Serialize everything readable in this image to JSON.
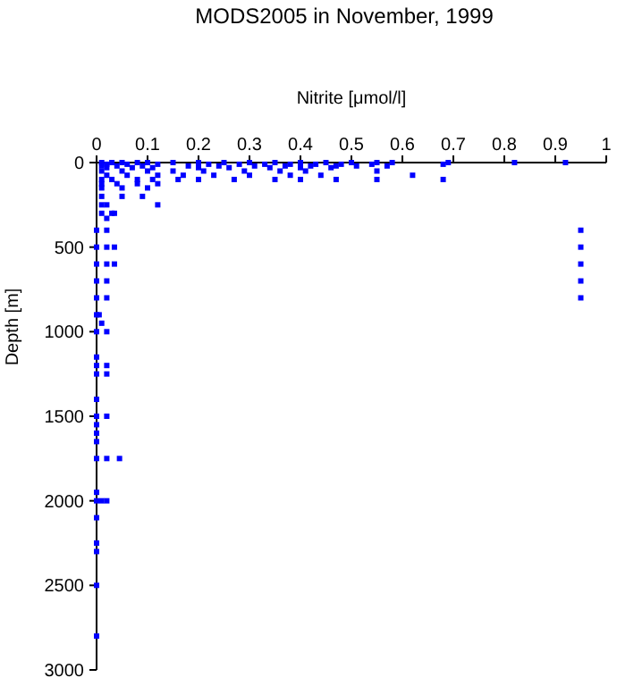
{
  "chart_data": {
    "type": "scatter",
    "title": "MODS2005 in November, 1999",
    "xlabel": "Nitrite [μmol/l]",
    "ylabel": "Depth [m]",
    "marker": "square",
    "grid": false,
    "xlim": [
      0,
      1
    ],
    "xticks": [
      0,
      0.1,
      0.2,
      0.3,
      0.4,
      0.5,
      0.6,
      0.7,
      0.8,
      0.9,
      1
    ],
    "ylim": [
      3000,
      0
    ],
    "yticks": [
      0,
      500,
      1000,
      1500,
      2000,
      2500,
      3000
    ],
    "series": [
      {
        "color": "#0000ff",
        "x": [
          0.01,
          0.03,
          0.05,
          0.08,
          0.1,
          0.15,
          0.2,
          0.25,
          0.3,
          0.35,
          0.4,
          0.45,
          0.5,
          0.55,
          0.58,
          0.69,
          0.82,
          0.92,
          0.02,
          0.06,
          0.12,
          0.22,
          0.28,
          0.33,
          0.38,
          0.43,
          0.48,
          0.54,
          0.68,
          0.01,
          0.04,
          0.09,
          0.18,
          0.24,
          0.31,
          0.37,
          0.42,
          0.47,
          0.51,
          0.57,
          0.02,
          0.07,
          0.11,
          0.2,
          0.26,
          0.34,
          0.4,
          0.46,
          0.01,
          0.05,
          0.1,
          0.15,
          0.21,
          0.29,
          0.36,
          0.41,
          0.55,
          0.02,
          0.06,
          0.12,
          0.17,
          0.23,
          0.3,
          0.38,
          0.44,
          0.62,
          0.01,
          0.03,
          0.08,
          0.11,
          0.16,
          0.2,
          0.27,
          0.35,
          0.4,
          0.47,
          0.55,
          0.68,
          0.01,
          0.04,
          0.08,
          0.12,
          0.01,
          0.05,
          0.1,
          0.01,
          0.05,
          0.09,
          0.01,
          0.02,
          0.12,
          0.01,
          0.03,
          0.035,
          0.02,
          0,
          0.02,
          0.95,
          0,
          0.02,
          0.035,
          0.95,
          0,
          0.02,
          0.035,
          0.95,
          0,
          0.02,
          0.95,
          0,
          0.02,
          0.95,
          0,
          0.005,
          0.01,
          0,
          0.02,
          0,
          0,
          0.02,
          0,
          0.02,
          0,
          0,
          0.02,
          0,
          0,
          0,
          0,
          0.02,
          0.045,
          0,
          0,
          0.01,
          0.02,
          0,
          0,
          0,
          0,
          0
        ],
        "values": [
          0,
          0,
          0,
          0,
          0,
          0,
          0,
          0,
          0,
          0,
          0,
          0,
          0,
          0,
          0,
          0,
          0,
          0,
          10,
          10,
          10,
          10,
          10,
          10,
          10,
          10,
          10,
          10,
          10,
          20,
          20,
          20,
          20,
          20,
          20,
          20,
          20,
          20,
          20,
          20,
          30,
          30,
          30,
          30,
          30,
          30,
          30,
          30,
          50,
          50,
          50,
          50,
          50,
          50,
          50,
          50,
          50,
          75,
          75,
          75,
          75,
          75,
          75,
          75,
          75,
          75,
          100,
          100,
          100,
          100,
          100,
          100,
          100,
          100,
          100,
          100,
          100,
          100,
          125,
          125,
          125,
          125,
          150,
          150,
          150,
          200,
          200,
          200,
          250,
          250,
          250,
          300,
          300,
          300,
          330,
          400,
          400,
          400,
          500,
          500,
          500,
          500,
          600,
          600,
          600,
          600,
          700,
          700,
          700,
          800,
          800,
          800,
          900,
          900,
          950,
          1000,
          1000,
          1150,
          1200,
          1200,
          1250,
          1250,
          1400,
          1500,
          1500,
          1550,
          1600,
          1650,
          1750,
          1750,
          1750,
          1950,
          2000,
          2000,
          2000,
          2100,
          2250,
          2300,
          2500,
          2800
        ]
      }
    ]
  }
}
